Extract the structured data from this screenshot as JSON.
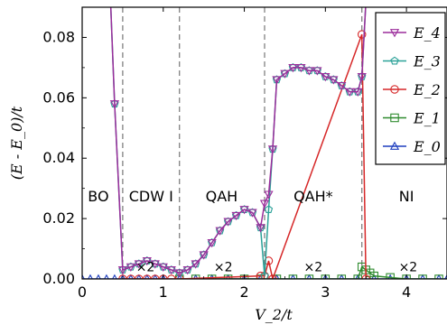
{
  "chart_data": {
    "type": "line",
    "xlabel": "V_2/t",
    "ylabel": "(E - E_0)/t",
    "xlim": [
      0,
      4.5
    ],
    "ylim": [
      0,
      0.09
    ],
    "xticks": [
      0,
      1,
      2,
      3,
      4
    ],
    "yticks": [
      0.0,
      0.02,
      0.04,
      0.06,
      0.08
    ],
    "ytick_labels": [
      "0.00",
      "0.02",
      "0.04",
      "0.06",
      "0.08"
    ],
    "phase_boundaries": [
      0.5,
      1.2,
      2.25,
      3.45
    ],
    "phase_labels": [
      {
        "text": "BO",
        "x": 0.2,
        "y": 0.0275
      },
      {
        "text": "CDW I",
        "x": 0.85,
        "y": 0.0275
      },
      {
        "text": "QAH",
        "x": 1.72,
        "y": 0.0275
      },
      {
        "text": "QAH*",
        "x": 2.85,
        "y": 0.0275
      },
      {
        "text": "NI",
        "x": 4.0,
        "y": 0.0275
      }
    ],
    "annotations": [
      {
        "text": "×2",
        "x": 0.78,
        "y": 0.0025
      },
      {
        "text": "×2",
        "x": 1.74,
        "y": 0.0025
      },
      {
        "text": "×2",
        "x": 2.85,
        "y": 0.0025
      },
      {
        "text": "×2",
        "x": 4.02,
        "y": 0.0025
      }
    ],
    "legend_position": "top-right",
    "series": [
      {
        "name": "E_4",
        "color": "#9b2d9b",
        "marker": "triangle-down",
        "x": [
          0.35,
          0.4,
          0.5,
          0.6,
          0.7,
          0.8,
          0.9,
          1.0,
          1.1,
          1.2,
          1.3,
          1.4,
          1.5,
          1.6,
          1.7,
          1.8,
          1.9,
          2.0,
          2.1,
          2.2,
          2.25,
          2.3,
          2.35,
          2.4,
          2.5,
          2.6,
          2.7,
          2.8,
          2.9,
          3.0,
          3.1,
          3.2,
          3.3,
          3.4,
          3.45,
          3.5,
          3.55
        ],
        "y": [
          0.092,
          0.058,
          0.003,
          0.004,
          0.005,
          0.006,
          0.005,
          0.004,
          0.003,
          0.002,
          0.003,
          0.005,
          0.008,
          0.012,
          0.016,
          0.019,
          0.021,
          0.023,
          0.022,
          0.017,
          0.025,
          0.028,
          0.043,
          0.066,
          0.068,
          0.07,
          0.07,
          0.069,
          0.069,
          0.067,
          0.066,
          0.064,
          0.062,
          0.062,
          0.067,
          0.092,
          0.092
        ]
      },
      {
        "name": "E_3",
        "color": "#2aa198",
        "marker": "pentagon",
        "x": [
          0.35,
          0.4,
          0.5,
          0.6,
          0.7,
          0.8,
          0.9,
          1.0,
          1.1,
          1.2,
          1.3,
          1.4,
          1.5,
          1.6,
          1.7,
          1.8,
          1.9,
          2.0,
          2.1,
          2.2,
          2.25,
          2.3,
          2.35,
          2.4,
          2.5,
          2.6,
          2.7,
          2.8,
          2.9,
          3.0,
          3.1,
          3.2,
          3.3,
          3.4,
          3.45,
          3.5,
          3.55
        ],
        "y": [
          0.092,
          0.058,
          0.003,
          0.004,
          0.005,
          0.006,
          0.005,
          0.004,
          0.003,
          0.002,
          0.003,
          0.005,
          0.008,
          0.012,
          0.016,
          0.019,
          0.021,
          0.023,
          0.022,
          0.017,
          0.001,
          0.023,
          0.043,
          0.066,
          0.068,
          0.07,
          0.07,
          0.069,
          0.069,
          0.067,
          0.066,
          0.064,
          0.062,
          0.062,
          0.067,
          0.092,
          0.092
        ]
      },
      {
        "name": "E_2",
        "color": "#d62728",
        "marker": "circle",
        "x": [
          0.5,
          0.6,
          0.7,
          0.8,
          0.9,
          1.0,
          1.1,
          1.2,
          2.2,
          2.25,
          2.3,
          2.35,
          3.45,
          3.5
        ],
        "y": [
          0.0,
          0.0,
          0.0,
          0.0,
          0.0,
          0.0,
          0.0,
          0.0,
          0.001,
          0.001,
          0.006,
          0.0,
          0.081,
          0.0
        ]
      },
      {
        "name": "E_1",
        "color": "#2e8b2e",
        "marker": "square",
        "x": [
          1.2,
          1.4,
          1.6,
          1.8,
          2.0,
          2.2,
          2.4,
          2.6,
          2.8,
          3.0,
          3.2,
          3.4,
          3.45,
          3.5,
          3.55,
          3.6,
          3.8,
          4.0,
          4.2,
          4.4
        ],
        "y": [
          0.0,
          0.0,
          0.0,
          0.0,
          0.0,
          0.0,
          0.0,
          0.0,
          0.0,
          0.0,
          0.0,
          0.0,
          0.004,
          0.003,
          0.002,
          0.001,
          0.0005,
          0.0,
          0.0,
          0.0
        ]
      },
      {
        "name": "E_0",
        "color": "#1f3fbf",
        "marker": "triangle-up",
        "x": [
          0.0,
          0.1,
          0.2,
          0.3,
          0.4,
          0.5,
          0.6,
          0.7,
          0.8,
          0.9,
          1.0,
          1.2,
          1.4,
          1.6,
          1.8,
          2.0,
          2.2,
          2.4,
          2.6,
          2.8,
          3.0,
          3.2,
          3.4,
          3.6,
          3.8,
          4.0,
          4.2,
          4.4,
          4.5
        ],
        "y": [
          0,
          0,
          0,
          0,
          0,
          0,
          0,
          0,
          0,
          0,
          0,
          0,
          0,
          0,
          0,
          0,
          0,
          0,
          0,
          0,
          0,
          0,
          0,
          0,
          0,
          0,
          0,
          0,
          0
        ]
      }
    ]
  }
}
